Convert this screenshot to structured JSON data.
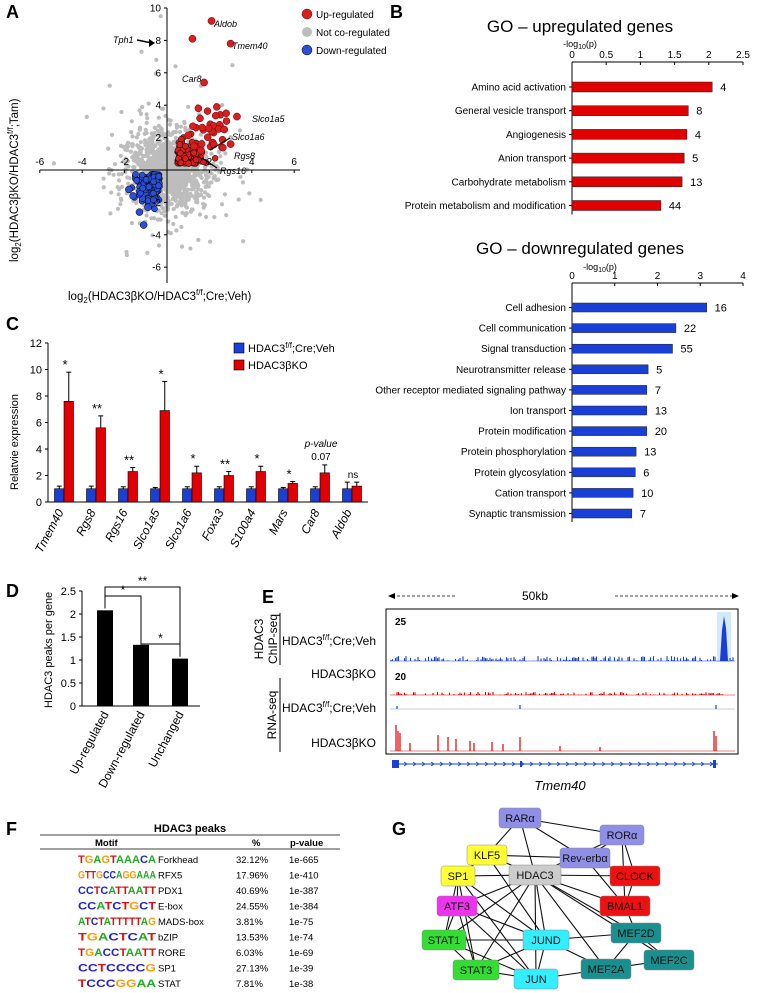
{
  "panel_letters": [
    "A",
    "B",
    "C",
    "D",
    "E",
    "F",
    "G"
  ],
  "panelA": {
    "xlabel_main": "log",
    "xlabel_sub": "2",
    "xlabel_rest": "(HDAC3βKO/HDAC3",
    "xlabel_sup": "f/f",
    "xlabel_end": ";Cre;Veh)",
    "ylabel_main": "log",
    "ylabel_sub": "2",
    "ylabel_rest": "(HDAC3βKO/HDAC3",
    "ylabel_sup": "f/f",
    "ylabel_end": ";Tam)",
    "legend": [
      "Up-regulated",
      "Not co-regulated",
      "Down-regulated"
    ],
    "colors": {
      "up": "#d62020",
      "none": "#bdbdbd",
      "down": "#2b4fd6"
    },
    "gene_labels": [
      "Aldob",
      "Tph1",
      "Tmem40",
      "Car8",
      "Slco1a5",
      "Slco1a6",
      "Rgs8",
      "Rgs16"
    ],
    "xticks": [
      "-6",
      "-4",
      "-2",
      "0",
      "2",
      "4",
      "6"
    ],
    "yticks": [
      "10",
      "8",
      "6",
      "4",
      "2",
      "-2",
      "-4",
      "-6"
    ]
  },
  "panelB": {
    "up": {
      "title": "GO – upregulated genes",
      "axis_label": "-log",
      "axis_sub": "10",
      "axis_end": "(p)",
      "ticks": [
        "0",
        "0.5",
        "1",
        "1.5",
        "2",
        "2.5"
      ],
      "xmax": 2.5,
      "color": "#e00000",
      "terms": [
        "Amino acid activation",
        "General vesicle transport",
        "Angiogenesis",
        "Anion transport",
        "Carbohydrate metabolism",
        "Protein metabolism and modification"
      ],
      "values": [
        2.05,
        1.7,
        1.68,
        1.64,
        1.61,
        1.3
      ],
      "counts": [
        "4",
        "8",
        "4",
        "5",
        "13",
        "44"
      ]
    },
    "down": {
      "title": "GO – downregulated genes",
      "axis_label": "-log",
      "axis_sub": "10",
      "axis_end": "(p)",
      "ticks": [
        "0",
        "1",
        "2",
        "3",
        "4"
      ],
      "xmax": 4,
      "color": "#1a3fd6",
      "terms": [
        "Cell adhesion",
        "Cell communication",
        "Signal transduction",
        "Neurotransmitter release",
        "Other receptor mediated signaling pathway",
        "Ion transport",
        "Protein modification",
        "Protein phosphorylation",
        "Protein glycosylation",
        "Cation transport",
        "Synaptic transmission"
      ],
      "values": [
        3.15,
        2.43,
        2.35,
        1.78,
        1.75,
        1.75,
        1.75,
        1.5,
        1.48,
        1.43,
        1.4
      ],
      "counts": [
        "16",
        "22",
        "55",
        "5",
        "7",
        "13",
        "20",
        "13",
        "6",
        "10",
        "7"
      ]
    }
  },
  "panelC": {
    "ylabel": "Relatvie expression",
    "yticks": [
      "0",
      "2",
      "4",
      "6",
      "8",
      "10",
      "12"
    ],
    "ymax": 12,
    "legend": [
      "HDAC3f/f;Cre;Veh",
      "HDAC3βKO"
    ],
    "legend_main": "HDAC3",
    "legend_sup": "f/f",
    "legend_end": ";Cre;Veh",
    "legend2": "HDAC3βKO",
    "colors": {
      "ctrl": "#1a3fd6",
      "ko": "#e00000"
    },
    "genes": [
      "Tmem40",
      "Rgs8",
      "Rgs16",
      "Slco1a5",
      "Slco1a6",
      "Foxa3",
      "S100a4",
      "Mars",
      "Car8",
      "Aldob"
    ],
    "ctrl": [
      1,
      1,
      1,
      1,
      1,
      1,
      1,
      1,
      1,
      1
    ],
    "ctrl_err": [
      0.2,
      0.2,
      0.15,
      0.1,
      0.15,
      0.15,
      0.15,
      0.1,
      0.15,
      0.5
    ],
    "ko": [
      7.6,
      5.6,
      2.3,
      6.9,
      2.2,
      2.0,
      2.3,
      1.4,
      2.2,
      1.2
    ],
    "ko_err": [
      2.2,
      0.9,
      0.3,
      2.2,
      0.5,
      0.3,
      0.4,
      0.15,
      0.6,
      0.3
    ],
    "sig": [
      "*",
      "**",
      "**",
      "*",
      "*",
      "**",
      "*",
      "*",
      "p-value 0.07",
      "ns"
    ],
    "sig_pv_label": "p-value",
    "sig_pv_val": "0.07"
  },
  "panelD": {
    "ylabel": "HDAC3 peaks per gene",
    "yticks": [
      "0",
      "0.5",
      "1",
      "1.5",
      "2",
      "2.5"
    ],
    "ymax": 2.5,
    "categories": [
      "Up-regulated",
      "Down-regulated",
      "Unchanged"
    ],
    "values": [
      2.08,
      1.33,
      1.03
    ],
    "sig": [
      "*",
      "*",
      "**"
    ]
  },
  "panelE": {
    "scale": "50kb",
    "group1": "HDAC3",
    "group1b": "ChIP-seq",
    "group2": "RNA-seq",
    "track_max1": "25",
    "track_max2": "20",
    "tracks": [
      "HDAC3f/f;Cre;Veh",
      "HDAC3βKO",
      "HDAC3f/f;Cre;Veh",
      "HDAC3βKO"
    ],
    "track_main": "HDAC3",
    "track_sup": "f/f",
    "track_end": ";Cre;Veh",
    "track_ko": "HDAC3βKO",
    "gene": "Tmem40"
  },
  "panelF": {
    "title": "HDAC3 peaks",
    "headers": [
      "Motif",
      "%",
      "p-value"
    ],
    "rows": [
      {
        "logo": "TGAGTAAACA",
        "name": "Forkhead",
        "pct": "32.12%",
        "p": "1e-665"
      },
      {
        "logo": "GTTGCCAGGAAA",
        "name": "RFX5",
        "pct": "17.96%",
        "p": "1e-410"
      },
      {
        "logo": "CCTCATTAATT",
        "name": "PDX1",
        "pct": "40.69%",
        "p": "1e-387"
      },
      {
        "logo": "CCATCTGCT",
        "name": "E-box",
        "pct": "24.55%",
        "p": "1e-384"
      },
      {
        "logo": "ATCTATTTTTAG",
        "name": "MADS-box",
        "pct": "3.81%",
        "p": "1e-75"
      },
      {
        "logo": "TGACTCAT",
        "name": "bZIP",
        "pct": "13.53%",
        "p": "1e-74"
      },
      {
        "logo": "TGACCTAATT",
        "name": "RORE",
        "pct": "6.03%",
        "p": "1e-69"
      },
      {
        "logo": "CCTCCCCG",
        "name": "SP1",
        "pct": "27.13%",
        "p": "1e-39"
      },
      {
        "logo": "TCCCGGAA",
        "name": "STAT",
        "pct": "7.81%",
        "p": "1e-38"
      }
    ]
  },
  "panelG": {
    "nodes": [
      {
        "id": "HDAC3",
        "label": "HDAC3",
        "color": "#cccccc"
      },
      {
        "id": "RARa",
        "label": "RARα",
        "color": "#8f8fe8"
      },
      {
        "id": "RORa",
        "label": "RORα",
        "color": "#8f8fe8"
      },
      {
        "id": "KLF5",
        "label": "KLF5",
        "color": "#ffff33"
      },
      {
        "id": "Reverba",
        "label": "Rev-erbα",
        "color": "#8f8fe8"
      },
      {
        "id": "SP1",
        "label": "SP1",
        "color": "#ffff33"
      },
      {
        "id": "CLOCK",
        "label": "CLOCK",
        "color": "#ee1111"
      },
      {
        "id": "ATF3",
        "label": "ATF3",
        "color": "#ee33ee"
      },
      {
        "id": "BMAL1",
        "label": "BMAL1",
        "color": "#ee1111"
      },
      {
        "id": "STAT1",
        "label": "STAT1",
        "color": "#33dd33"
      },
      {
        "id": "JUND",
        "label": "JUND",
        "color": "#33eeff"
      },
      {
        "id": "MEF2D",
        "label": "MEF2D",
        "color": "#1a8f8f"
      },
      {
        "id": "STAT3",
        "label": "STAT3",
        "color": "#33dd33"
      },
      {
        "id": "MEF2C",
        "label": "MEF2C",
        "color": "#1a8f8f"
      },
      {
        "id": "MEF2A",
        "label": "MEF2A",
        "color": "#1a8f8f"
      },
      {
        "id": "JUN",
        "label": "JUN",
        "color": "#33eeff"
      }
    ]
  }
}
